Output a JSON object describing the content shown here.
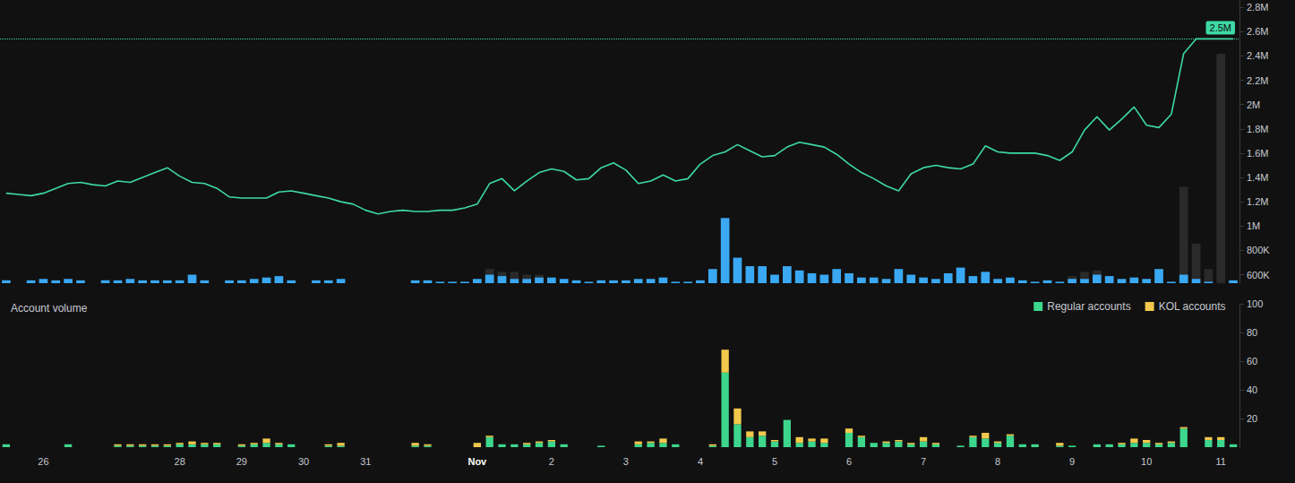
{
  "chart_data": [
    {
      "type": "line",
      "categories": [
        null,
        null,
        null,
        "26",
        null,
        null,
        null,
        null,
        null,
        null,
        null,
        null,
        null,
        null,
        "28",
        null,
        null,
        null,
        null,
        "29",
        null,
        null,
        null,
        null,
        "30",
        null,
        null,
        null,
        null,
        "31",
        null,
        null,
        null,
        null,
        null,
        null,
        null,
        null,
        "Nov",
        null,
        null,
        null,
        null,
        null,
        "2",
        null,
        null,
        null,
        null,
        null,
        "3",
        null,
        null,
        null,
        null,
        null,
        "4",
        null,
        null,
        null,
        null,
        null,
        "5",
        null,
        null,
        null,
        null,
        null,
        "6",
        null,
        null,
        null,
        null,
        null,
        "7",
        null,
        null,
        null,
        null,
        null,
        "8",
        null,
        null,
        null,
        null,
        null,
        "9",
        null,
        null,
        null,
        null,
        null,
        "10",
        null,
        null,
        null,
        null,
        null,
        "11",
        null
      ],
      "tick_labels": "y",
      "grid": false,
      "ylim": [
        530000,
        2860000
      ],
      "yticks": [
        {
          "value": 600000,
          "label": "600K"
        },
        {
          "value": 800000,
          "label": "800K"
        },
        {
          "value": 1000000,
          "label": "1M"
        },
        {
          "value": 1200000,
          "label": "1.2M"
        },
        {
          "value": 1400000,
          "label": "1.4M"
        },
        {
          "value": 1600000,
          "label": "1.6M"
        },
        {
          "value": 1800000,
          "label": "1.8M"
        },
        {
          "value": 2000000,
          "label": "2M"
        },
        {
          "value": 2200000,
          "label": "2.2M"
        },
        {
          "value": 2400000,
          "label": "2.4M"
        },
        {
          "value": 2600000,
          "label": "2.6M"
        },
        {
          "value": 2800000,
          "label": "2.8M"
        }
      ],
      "y2lim": [
        0,
        100
      ],
      "annotation": {
        "value": 2540000,
        "label": "2.5M"
      },
      "series": [
        {
          "type": "bar",
          "axis": "y2",
          "color": "#2a2a2a",
          "values": [
            null,
            null,
            null,
            null,
            null,
            null,
            null,
            null,
            null,
            null,
            null,
            null,
            null,
            null,
            null,
            null,
            null,
            null,
            null,
            null,
            null,
            null,
            null,
            null,
            null,
            null,
            null,
            null,
            null,
            null,
            null,
            null,
            null,
            null,
            null,
            null,
            null,
            null,
            null,
            5,
            4,
            4,
            3,
            3,
            null,
            null,
            null,
            null,
            null,
            null,
            null,
            null,
            null,
            null,
            null,
            null,
            null,
            null,
            null,
            null,
            null,
            null,
            null,
            null,
            null,
            null,
            null,
            null,
            null,
            null,
            null,
            null,
            null,
            null,
            null,
            null,
            null,
            null,
            null,
            null,
            null,
            null,
            null,
            null,
            null,
            null,
            2.5,
            4,
            4.5,
            null,
            null,
            null,
            null,
            null,
            null,
            34,
            14,
            5,
            81,
            null
          ]
        },
        {
          "type": "bar",
          "axis": "y2",
          "color": "#3aa8f2",
          "values": [
            1,
            0,
            1,
            1.5,
            1,
            1.5,
            1,
            0,
            1,
            1,
            1.5,
            1,
            1,
            1,
            1,
            3,
            1,
            0,
            1,
            1,
            1.5,
            2,
            2.5,
            1,
            0,
            1,
            1,
            1.5,
            0,
            0,
            0,
            0,
            0,
            1,
            1,
            0.5,
            0.5,
            0.5,
            1.5,
            3,
            2.5,
            1.5,
            1.5,
            2,
            2,
            1.5,
            1,
            0.5,
            1,
            1,
            1,
            1.5,
            1.5,
            2,
            0.5,
            0.5,
            1,
            5,
            23,
            9,
            6,
            6,
            3,
            6,
            4.5,
            3.5,
            3,
            5,
            3.5,
            2,
            2,
            1.5,
            5,
            3,
            2,
            1.5,
            3.5,
            5.5,
            2.5,
            4,
            1.5,
            2,
            1,
            0.5,
            1,
            0.5,
            1.5,
            1.5,
            3,
            2.5,
            1.5,
            2,
            1.5,
            5,
            0.5,
            3,
            1.5,
            0.5,
            0,
            1
          ]
        },
        {
          "type": "line",
          "color": "#3ed9a5",
          "values": [
            1270000,
            1260000,
            1250000,
            1270000,
            1310000,
            1350000,
            1360000,
            1340000,
            1330000,
            1370000,
            1360000,
            1400000,
            1440000,
            1480000,
            1410000,
            1360000,
            1350000,
            1310000,
            1240000,
            1230000,
            1230000,
            1230000,
            1280000,
            1290000,
            1270000,
            1250000,
            1230000,
            1200000,
            1180000,
            1130000,
            1100000,
            1120000,
            1130000,
            1120000,
            1120000,
            1130000,
            1130000,
            1150000,
            1180000,
            1350000,
            1390000,
            1290000,
            1370000,
            1440000,
            1470000,
            1450000,
            1380000,
            1390000,
            1480000,
            1520000,
            1460000,
            1350000,
            1370000,
            1420000,
            1370000,
            1390000,
            1510000,
            1580000,
            1610000,
            1670000,
            1620000,
            1570000,
            1580000,
            1650000,
            1690000,
            1670000,
            1650000,
            1590000,
            1510000,
            1440000,
            1390000,
            1330000,
            1290000,
            1430000,
            1480000,
            1500000,
            1480000,
            1470000,
            1510000,
            1660000,
            1610000,
            1600000,
            1600000,
            1600000,
            1580000,
            1540000,
            1610000,
            1790000,
            1900000,
            1790000,
            1880000,
            1980000,
            1830000,
            1810000,
            1920000,
            2420000,
            2540000,
            2540000,
            2540000,
            2540000
          ]
        }
      ]
    },
    {
      "type": "bar",
      "title": "Account volume",
      "categories": [
        null,
        null,
        null,
        "26",
        null,
        null,
        null,
        null,
        null,
        null,
        null,
        null,
        null,
        null,
        "28",
        null,
        null,
        null,
        null,
        "29",
        null,
        null,
        null,
        null,
        "30",
        null,
        null,
        null,
        null,
        "31",
        null,
        null,
        null,
        null,
        null,
        null,
        null,
        null,
        "Nov",
        null,
        null,
        null,
        null,
        null,
        "2",
        null,
        null,
        null,
        null,
        null,
        "3",
        null,
        null,
        null,
        null,
        null,
        "4",
        null,
        null,
        null,
        null,
        null,
        "5",
        null,
        null,
        null,
        null,
        null,
        "6",
        null,
        null,
        null,
        null,
        null,
        "7",
        null,
        null,
        null,
        null,
        null,
        "8",
        null,
        null,
        null,
        null,
        null,
        "9",
        null,
        null,
        null,
        null,
        null,
        "10",
        null,
        null,
        null,
        null,
        null,
        "11",
        null
      ],
      "stacked": true,
      "legend": "top-right",
      "grid": false,
      "ylim": [
        0,
        100
      ],
      "yticks": [
        20,
        40,
        60,
        80,
        100
      ],
      "series": [
        {
          "name": "Regular accounts",
          "color": "#3dd68c",
          "values": [
            2,
            0,
            0,
            0,
            0,
            2,
            0,
            0,
            0,
            1,
            1,
            1,
            1,
            1,
            2,
            2,
            2,
            2,
            0,
            1,
            2,
            3,
            2,
            2,
            0,
            0,
            1,
            1,
            0,
            0,
            0,
            0,
            0,
            1,
            1,
            0,
            0,
            0,
            0,
            7,
            2,
            2,
            2,
            3,
            4,
            2,
            0,
            0,
            1,
            0,
            0,
            2,
            3,
            3,
            2,
            0,
            0,
            1,
            52,
            16,
            7,
            8,
            4,
            19,
            3,
            4,
            3,
            0,
            10,
            7,
            3,
            3,
            4,
            2,
            4,
            2,
            0,
            1,
            7,
            6,
            3,
            8,
            2,
            2,
            0,
            1,
            1,
            0,
            2,
            2,
            2,
            3,
            3,
            2,
            3,
            13,
            0,
            5,
            5,
            2
          ]
        },
        {
          "name": "KOL accounts",
          "color": "#f2c94c",
          "values": [
            0,
            0,
            0,
            0,
            0,
            0,
            0,
            0,
            0,
            1,
            1,
            1,
            1,
            1,
            1,
            2,
            1,
            1,
            0,
            1,
            1,
            3,
            1,
            0,
            0,
            0,
            1,
            2,
            0,
            0,
            0,
            0,
            0,
            2,
            1,
            0,
            0,
            0,
            3,
            1,
            0,
            0,
            1,
            1,
            1,
            0,
            0,
            0,
            0,
            0,
            0,
            2,
            1,
            3,
            0,
            0,
            0,
            1,
            16,
            11,
            4,
            3,
            1,
            0,
            4,
            2,
            3,
            0,
            3,
            1,
            0,
            1,
            1,
            1,
            3,
            1,
            0,
            0,
            1,
            4,
            1,
            1,
            0,
            0,
            0,
            2,
            0,
            0,
            0,
            0,
            1,
            3,
            2,
            1,
            1,
            1,
            0,
            2,
            2,
            0
          ]
        }
      ]
    }
  ]
}
